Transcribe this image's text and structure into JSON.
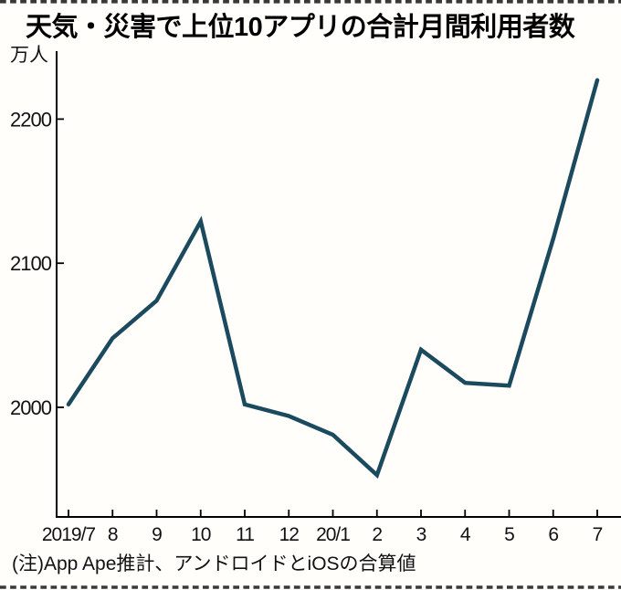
{
  "page": {
    "title": "天気・災害で上位10アプリの合計月間利用者数",
    "note": "(注)App Ape推計、アンドロイドとiOSの合算値"
  },
  "chart_data": {
    "type": "line",
    "title": "天気・災害で上位10アプリの合計月間利用者数",
    "unit_label": "万人",
    "xlabel": "",
    "ylabel": "万人",
    "categories": [
      "2019/7",
      "8",
      "9",
      "10",
      "11",
      "12",
      "20/1",
      "2",
      "3",
      "4",
      "5",
      "6",
      "7"
    ],
    "series": [
      {
        "name": "天気・災害上位10アプリ合計月間利用者数",
        "values": [
          2002,
          2048,
          2074,
          2129,
          2002,
          1994,
          1981,
          1953,
          2040,
          2017,
          2015,
          2117,
          2227
        ]
      }
    ],
    "yticks": [
      2200,
      2100,
      2000
    ],
    "ylim": [
      1918,
      2246
    ],
    "grid": false,
    "legend": "none",
    "line_color": "#1b4a5f",
    "note": "(注)App Ape推計、アンドロイドとiOSの合算値"
  },
  "colors": {
    "background": "#fffefa",
    "axis": "#000000",
    "line": "#1b4a5f",
    "dotted_border": "#383838",
    "text": "#111111"
  }
}
